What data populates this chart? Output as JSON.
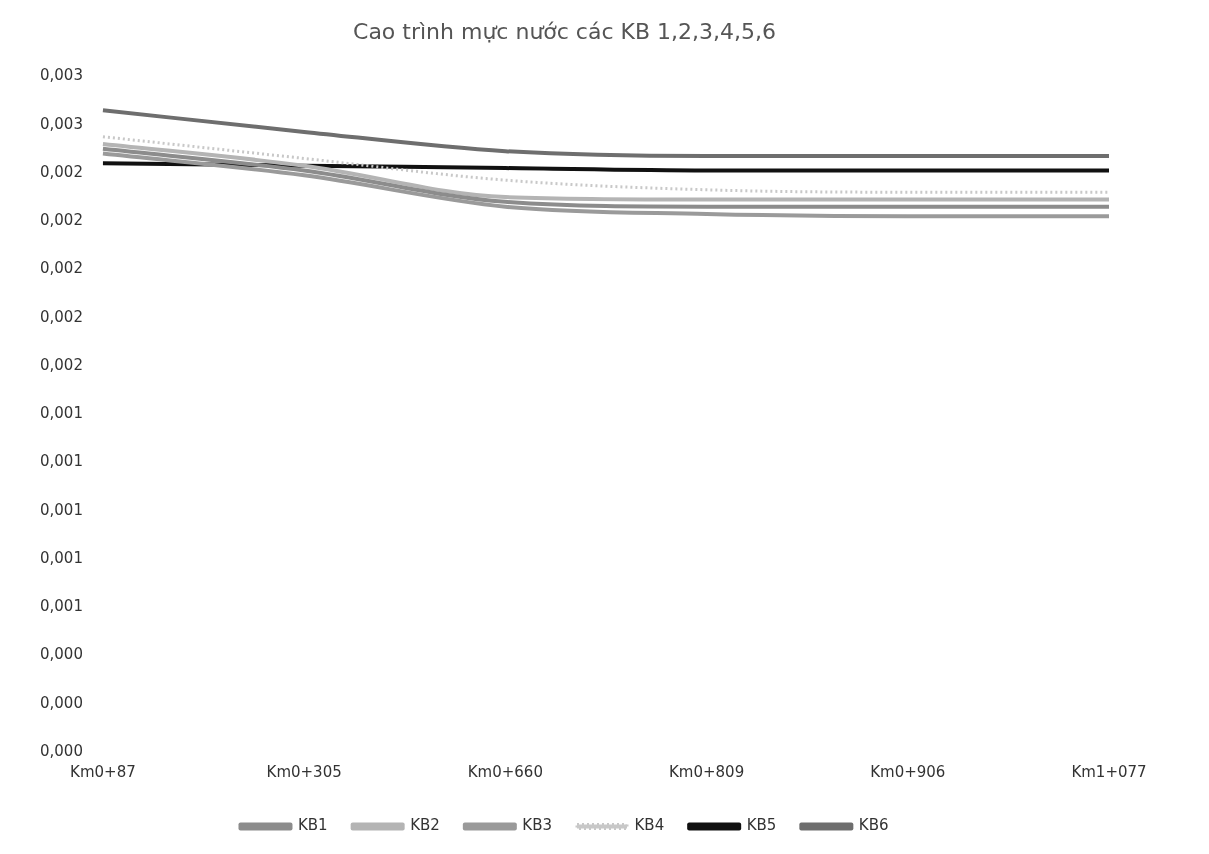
{
  "chart_data": {
    "type": "line",
    "title": "Cao trình mực nước các KB 1,2,3,4,5,6",
    "categories": [
      "Km0+87",
      "Km0+305",
      "Km0+660",
      "Km0+809",
      "Km0+906",
      "Km1+077"
    ],
    "series": [
      {
        "name": "KB1",
        "color": "#8c8c8c",
        "values": [
          0.0025,
          0.00241,
          0.00228,
          0.00226,
          0.00226,
          0.00226
        ]
      },
      {
        "name": "KB2",
        "color": "#b4b4b4",
        "values": [
          0.00252,
          0.00243,
          0.0023,
          0.00229,
          0.00229,
          0.00229
        ]
      },
      {
        "name": "KB3",
        "color": "#9a9a9a",
        "values": [
          0.00248,
          0.00239,
          0.00226,
          0.00223,
          0.00222,
          0.00222
        ]
      },
      {
        "name": "KB4",
        "color": "#c8c8c8",
        "line_style": "dotted",
        "values": [
          0.00255,
          0.00246,
          0.00237,
          0.00233,
          0.00232,
          0.00232
        ]
      },
      {
        "name": "KB5",
        "color": "#111111",
        "values": [
          0.00244,
          0.00243,
          0.00242,
          0.00241,
          0.00241,
          0.00241
        ]
      },
      {
        "name": "KB6",
        "color": "#6e6e6e",
        "values": [
          0.00266,
          0.00257,
          0.00249,
          0.00247,
          0.00247,
          0.00247
        ]
      }
    ],
    "ylim": [
      0,
      0.0028
    ],
    "yticks": [
      {
        "value": 0,
        "label": "0,000"
      },
      {
        "value": 0.0002,
        "label": "0,000"
      },
      {
        "value": 0.0004,
        "label": "0,000"
      },
      {
        "value": 0.0006,
        "label": "0,001"
      },
      {
        "value": 0.0008,
        "label": "0,001"
      },
      {
        "value": 0.001,
        "label": "0,001"
      },
      {
        "value": 0.0012,
        "label": "0,001"
      },
      {
        "value": 0.0014,
        "label": "0,001"
      },
      {
        "value": 0.0016,
        "label": "0,002"
      },
      {
        "value": 0.0018,
        "label": "0,002"
      },
      {
        "value": 0.002,
        "label": "0,002"
      },
      {
        "value": 0.0022,
        "label": "0,002"
      },
      {
        "value": 0.0024,
        "label": "0,002"
      },
      {
        "value": 0.0026,
        "label": "0,003"
      },
      {
        "value": 0.0028,
        "label": "0,003"
      }
    ],
    "grid": false,
    "legend": "bottom",
    "marker": "none",
    "line_style": "solid"
  }
}
